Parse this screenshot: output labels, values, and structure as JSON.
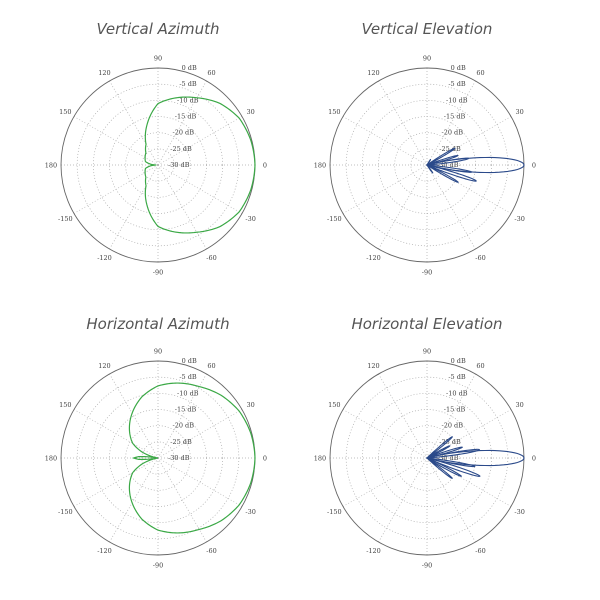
{
  "chart_data": [
    {
      "type": "polar",
      "title": "Vertical Azimuth",
      "angle_unit": "deg",
      "rlim": [
        -30,
        0
      ],
      "r_ticks": [
        "0 dB",
        "-5 dB",
        "-10 dB",
        "-15 dB",
        "-20 dB",
        "-25 dB",
        "-30 dB"
      ],
      "theta_ticks": [
        "0",
        "30",
        "60",
        "90",
        "120",
        "150",
        "180",
        "-150",
        "-120",
        "-90",
        "-60",
        "-30"
      ],
      "grid": true,
      "color": "#3aa845",
      "series": {
        "theta": [
          -180,
          -175,
          -165,
          -150,
          -135,
          -120,
          -105,
          -90,
          -75,
          -60,
          -45,
          -30,
          -15,
          0,
          15,
          30,
          45,
          60,
          75,
          90,
          105,
          120,
          135,
          150,
          165,
          175,
          180
        ],
        "r_db": [
          -29.5,
          -28,
          -26,
          -25.4,
          -24.7,
          -22.6,
          -17,
          -11,
          -8.5,
          -6,
          -3,
          -1,
          -0.3,
          0,
          -0.3,
          -1,
          -3,
          -6,
          -8.5,
          -11,
          -17,
          -22.6,
          -24.7,
          -25.4,
          -26,
          -28,
          -29.5
        ]
      }
    },
    {
      "type": "polar",
      "title": "Vertical Elevation",
      "angle_unit": "deg",
      "rlim": [
        -30,
        0
      ],
      "r_ticks": [
        "0 dB",
        "-5 dB",
        "-10 dB",
        "-15 dB",
        "-20 dB",
        "-25 dB",
        "-30 dB"
      ],
      "theta_ticks": [
        "0",
        "30",
        "60",
        "90",
        "120",
        "150",
        "180",
        "-150",
        "-120",
        "-90",
        "-60",
        "-30"
      ],
      "grid": true,
      "color": "#2b4a8a",
      "lobes": [
        {
          "angle": 0,
          "level_db": 0,
          "width_deg": 34
        },
        {
          "angle": 9,
          "level_db": -17,
          "width_deg": 12
        },
        {
          "angle": 17,
          "level_db": -20,
          "width_deg": 10
        },
        {
          "angle": 31,
          "level_db": -20,
          "width_deg": 10
        },
        {
          "angle": 57,
          "level_db": -28,
          "width_deg": 10
        },
        {
          "angle": -9,
          "level_db": -16,
          "width_deg": 10
        },
        {
          "angle": -18,
          "level_db": -14,
          "width_deg": 12
        },
        {
          "angle": -29,
          "level_db": -19,
          "width_deg": 10
        },
        {
          "angle": -54,
          "level_db": -27,
          "width_deg": 10
        }
      ]
    },
    {
      "type": "polar",
      "title": "Horizontal Azimuth",
      "angle_unit": "deg",
      "rlim": [
        -30,
        0
      ],
      "r_ticks": [
        "0 dB",
        "-5 dB",
        "-10 dB",
        "-15 dB",
        "-20 dB",
        "-25 dB",
        "-30 dB"
      ],
      "theta_ticks": [
        "0",
        "30",
        "60",
        "90",
        "120",
        "150",
        "180",
        "-150",
        "-120",
        "-90",
        "-60",
        "-30"
      ],
      "grid": true,
      "color": "#3aa845",
      "series": {
        "theta": [
          -180,
          -176,
          -170,
          -160,
          -150,
          -135,
          -120,
          -105,
          -90,
          -75,
          -60,
          -45,
          -30,
          -15,
          0,
          15,
          30,
          45,
          60,
          75,
          90,
          105,
          120,
          135,
          150,
          160,
          170,
          176,
          180
        ],
        "r_db": [
          -22.5,
          -24,
          -30,
          -25,
          -21,
          -17.5,
          -14,
          -10.5,
          -7.7,
          -6,
          -4.5,
          -2.5,
          -1,
          -0.3,
          0,
          -0.3,
          -1,
          -2.5,
          -4.5,
          -6,
          -7.7,
          -10.5,
          -14,
          -17.5,
          -21,
          -25,
          -30,
          -24,
          -22.5
        ]
      }
    },
    {
      "type": "polar",
      "title": "Horizontal Elevation",
      "angle_unit": "deg",
      "rlim": [
        -30,
        0
      ],
      "r_ticks": [
        "0 dB",
        "-5 dB",
        "-10 dB",
        "-15 dB",
        "-20 dB",
        "-25 dB",
        "-30 dB"
      ],
      "theta_ticks": [
        "0",
        "30",
        "60",
        "90",
        "120",
        "150",
        "180",
        "-150",
        "-120",
        "-90",
        "-60",
        "-30"
      ],
      "grid": true,
      "color": "#2b4a8a",
      "lobes": [
        {
          "angle": 0,
          "level_db": 0,
          "width_deg": 34
        },
        {
          "angle": 9,
          "level_db": -13.6,
          "width_deg": 12
        },
        {
          "angle": 17,
          "level_db": -18.6,
          "width_deg": 10
        },
        {
          "angle": 28,
          "level_db": -22,
          "width_deg": 10
        },
        {
          "angle": 40,
          "level_db": -19.8,
          "width_deg": 10
        },
        {
          "angle": -10,
          "level_db": -15,
          "width_deg": 10
        },
        {
          "angle": -19,
          "level_db": -12.7,
          "width_deg": 12
        },
        {
          "angle": -28,
          "level_db": -18,
          "width_deg": 10
        },
        {
          "angle": -39,
          "level_db": -20,
          "width_deg": 10
        }
      ]
    }
  ]
}
